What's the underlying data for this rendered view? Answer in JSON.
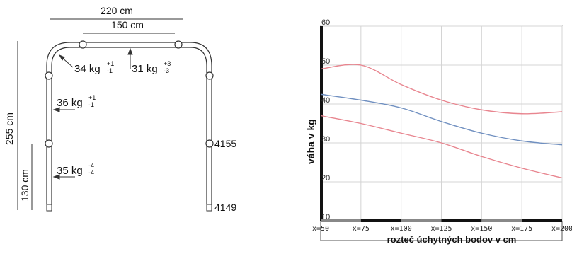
{
  "diagram": {
    "dim_total_width": "220 cm",
    "dim_inner_width": "150 cm",
    "dim_height": "255 cm",
    "dim_lower_height": "130 cm",
    "loads": [
      {
        "base": "34 kg",
        "sup": "+1",
        "sub": "-1"
      },
      {
        "base": "31 kg",
        "sup": "+3",
        "sub": "-3"
      },
      {
        "base": "36 kg",
        "sup": "+1",
        "sub": "-1"
      },
      {
        "base": "35 kg",
        "sup": "-4",
        "sub": "-4"
      }
    ],
    "codes": [
      "4155",
      "4149"
    ]
  },
  "chart_data": {
    "type": "line",
    "xlabel": "rozteč úchytných bodov v cm",
    "ylabel": "váha v kg",
    "x": [
      50,
      75,
      100,
      125,
      150,
      175,
      200
    ],
    "x_tick_labels": [
      "x=50",
      "x=75",
      "x=100",
      "x=125",
      "x=150",
      "x=175",
      "x=200"
    ],
    "ylim": [
      10,
      60
    ],
    "y_ticks": [
      10,
      20,
      30,
      40,
      50,
      60
    ],
    "grid": true,
    "series": [
      {
        "color": "#e8858f",
        "values": [
          49,
          50,
          45,
          41,
          38.5,
          37.5,
          38
        ]
      },
      {
        "color": "#6f8fc0",
        "values": [
          42.5,
          41,
          39,
          35.5,
          32.5,
          30.5,
          29.5
        ]
      },
      {
        "color": "#e8858f",
        "values": [
          37,
          35,
          32.5,
          30,
          26.5,
          23.5,
          21
        ]
      }
    ]
  }
}
